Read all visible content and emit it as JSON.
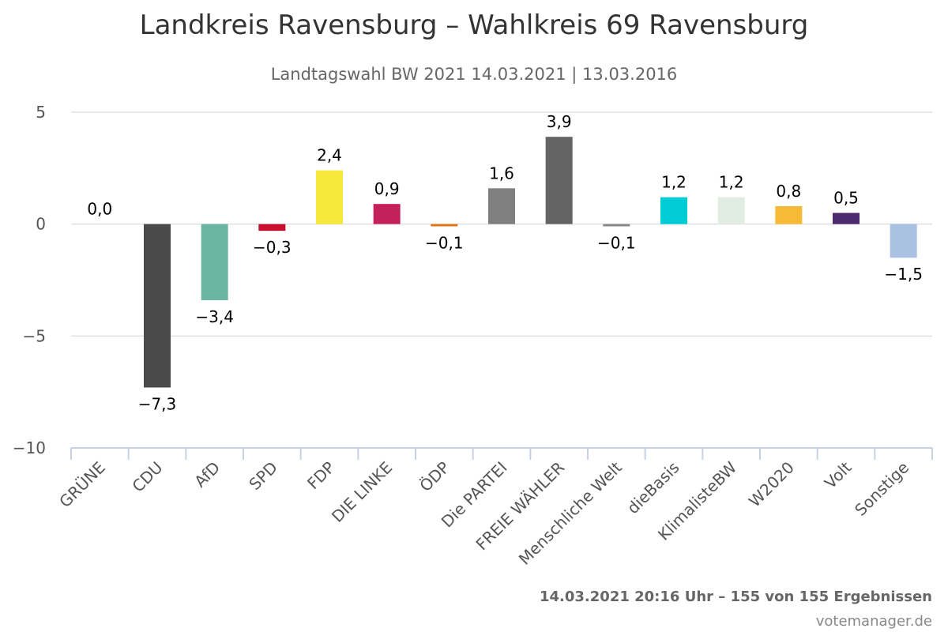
{
  "chart_data": {
    "type": "bar",
    "title": "Landkreis Ravensburg – Wahlkreis 69 Ravensburg",
    "subtitle": "Landtagswahl BW 2021 14.03.2021 | 13.03.2016",
    "categories": [
      "GRÜNE",
      "CDU",
      "AfD",
      "SPD",
      "FDP",
      "DIE LINKE",
      "ÖDP",
      "Die PARTEI",
      "FREIE WÄHLER",
      "Menschliche Welt",
      "dieBasis",
      "KlimalisteBW",
      "W2020",
      "Volt",
      "Sonstige"
    ],
    "values": [
      0.0,
      -7.3,
      -3.4,
      -0.3,
      2.4,
      0.9,
      -0.1,
      1.6,
      3.9,
      -0.1,
      1.2,
      1.2,
      0.8,
      0.5,
      -1.5
    ],
    "value_labels": [
      "0,0",
      "−7,3",
      "−3,4",
      "−0,3",
      "2,4",
      "0,9",
      "−0,1",
      "1,6",
      "3,9",
      "−0,1",
      "1,2",
      "1,2",
      "0,8",
      "0,5",
      "−1,5"
    ],
    "colors": [
      "#46962B",
      "#4A4A4A",
      "#6CB5A5",
      "#C8102E",
      "#F5E83A",
      "#C4205A",
      "#E27513",
      "#808080",
      "#646464",
      "#888888",
      "#00CCD6",
      "#E1EDE3",
      "#F7BA34",
      "#4E2A6E",
      "#AAC0E0"
    ],
    "ylim": [
      -10,
      5
    ],
    "yticks": [
      5,
      0,
      -5,
      -10
    ],
    "ytick_labels": [
      "5",
      "0",
      "−5",
      "−10"
    ],
    "grid": true,
    "legend": "none"
  },
  "footer": {
    "timestamp": "14.03.2021 20:16 Uhr – 155 von 155 Ergebnissen",
    "credit": "votemanager.de"
  }
}
